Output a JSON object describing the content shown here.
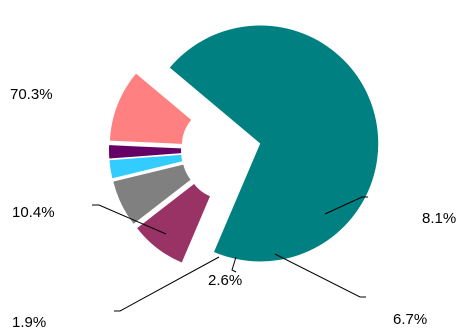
{
  "chart_data": {
    "type": "pie",
    "title": "",
    "exploded": true,
    "slices": [
      {
        "label": "70.3%",
        "value": 70.3,
        "color": "#008080"
      },
      {
        "label": "8.1%",
        "value": 8.1,
        "color": "#993366"
      },
      {
        "label": "6.7%",
        "value": 6.7,
        "color": "#808080"
      },
      {
        "label": "2.6%",
        "value": 2.6,
        "color": "#33CCFF"
      },
      {
        "label": "1.9%",
        "value": 1.9,
        "color": "#660066"
      },
      {
        "label": "10.4%",
        "value": 10.4,
        "color": "#FF8080"
      }
    ],
    "legend": "none",
    "label_style": "leader-lines"
  }
}
